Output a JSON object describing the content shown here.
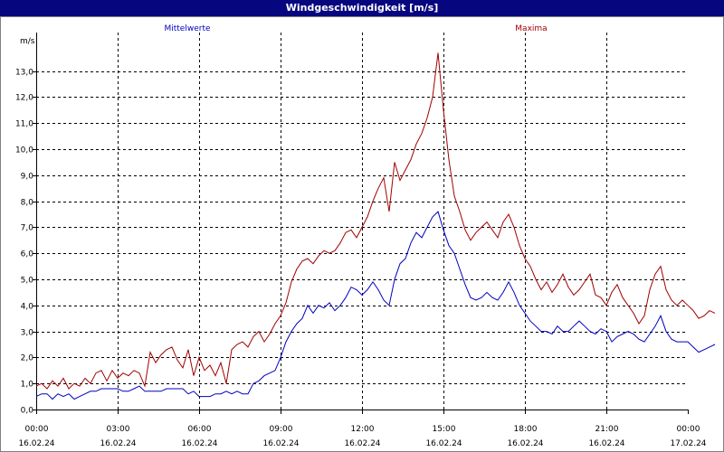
{
  "window": {
    "title": "Windgeschwindigkeit [m/s]"
  },
  "chart_data": {
    "type": "line",
    "title": "Windgeschwindigkeit [m/s]",
    "ylabel": "m/s",
    "xlabel": "",
    "ylim": [
      0,
      14
    ],
    "y_ticks": [
      "0,0",
      "1,0",
      "2,0",
      "3,0",
      "4,0",
      "5,0",
      "6,0",
      "7,0",
      "8,0",
      "9,0",
      "10,0",
      "11,0",
      "12,0",
      "13,0"
    ],
    "x_range_hours": [
      0,
      24
    ],
    "x_ticks": [
      {
        "hour": 0,
        "time": "00:00",
        "date": "16.02.24"
      },
      {
        "hour": 3,
        "time": "03:00",
        "date": "16.02.24"
      },
      {
        "hour": 6,
        "time": "06:00",
        "date": "16.02.24"
      },
      {
        "hour": 9,
        "time": "09:00",
        "date": "16.02.24"
      },
      {
        "hour": 12,
        "time": "12:00",
        "date": "16.02.24"
      },
      {
        "hour": 15,
        "time": "15:00",
        "date": "16.02.24"
      },
      {
        "hour": 18,
        "time": "18:00",
        "date": "16.02.24"
      },
      {
        "hour": 21,
        "time": "21:00",
        "date": "16.02.24"
      },
      {
        "hour": 24,
        "time": "00:00",
        "date": "17.02.24"
      }
    ],
    "grid": true,
    "series": [
      {
        "name": "Mittelwerte",
        "color": "#0000c0",
        "points": [
          [
            0,
            0.5
          ],
          [
            0.2,
            0.6
          ],
          [
            0.4,
            0.6
          ],
          [
            0.6,
            0.4
          ],
          [
            0.8,
            0.6
          ],
          [
            1,
            0.5
          ],
          [
            1.2,
            0.6
          ],
          [
            1.4,
            0.4
          ],
          [
            1.6,
            0.5
          ],
          [
            1.8,
            0.6
          ],
          [
            2,
            0.7
          ],
          [
            2.2,
            0.7
          ],
          [
            2.4,
            0.8
          ],
          [
            2.6,
            0.8
          ],
          [
            2.8,
            0.8
          ],
          [
            3,
            0.8
          ],
          [
            3.2,
            0.7
          ],
          [
            3.4,
            0.7
          ],
          [
            3.6,
            0.8
          ],
          [
            3.8,
            0.9
          ],
          [
            4,
            0.7
          ],
          [
            4.2,
            0.7
          ],
          [
            4.4,
            0.7
          ],
          [
            4.6,
            0.7
          ],
          [
            4.8,
            0.8
          ],
          [
            5,
            0.8
          ],
          [
            5.2,
            0.8
          ],
          [
            5.4,
            0.8
          ],
          [
            5.6,
            0.6
          ],
          [
            5.8,
            0.7
          ],
          [
            6,
            0.5
          ],
          [
            6.2,
            0.5
          ],
          [
            6.4,
            0.5
          ],
          [
            6.6,
            0.6
          ],
          [
            6.8,
            0.6
          ],
          [
            7,
            0.7
          ],
          [
            7.2,
            0.6
          ],
          [
            7.4,
            0.7
          ],
          [
            7.6,
            0.6
          ],
          [
            7.8,
            0.6
          ],
          [
            8,
            1.0
          ],
          [
            8.2,
            1.1
          ],
          [
            8.4,
            1.3
          ],
          [
            8.6,
            1.4
          ],
          [
            8.8,
            1.5
          ],
          [
            9,
            2.0
          ],
          [
            9.2,
            2.6
          ],
          [
            9.4,
            3.0
          ],
          [
            9.6,
            3.3
          ],
          [
            9.8,
            3.5
          ],
          [
            10,
            4.0
          ],
          [
            10.2,
            3.7
          ],
          [
            10.4,
            4.0
          ],
          [
            10.6,
            3.9
          ],
          [
            10.8,
            4.1
          ],
          [
            11,
            3.8
          ],
          [
            11.2,
            4.0
          ],
          [
            11.4,
            4.3
          ],
          [
            11.6,
            4.7
          ],
          [
            11.8,
            4.6
          ],
          [
            12,
            4.4
          ],
          [
            12.2,
            4.6
          ],
          [
            12.4,
            4.9
          ],
          [
            12.6,
            4.6
          ],
          [
            12.8,
            4.2
          ],
          [
            13,
            4.0
          ],
          [
            13.2,
            5.0
          ],
          [
            13.4,
            5.6
          ],
          [
            13.6,
            5.8
          ],
          [
            13.8,
            6.4
          ],
          [
            14,
            6.8
          ],
          [
            14.2,
            6.6
          ],
          [
            14.4,
            7.0
          ],
          [
            14.6,
            7.4
          ],
          [
            14.8,
            7.6
          ],
          [
            15,
            6.9
          ],
          [
            15.2,
            6.3
          ],
          [
            15.4,
            6.0
          ],
          [
            15.6,
            5.4
          ],
          [
            15.8,
            4.8
          ],
          [
            16,
            4.3
          ],
          [
            16.2,
            4.2
          ],
          [
            16.4,
            4.3
          ],
          [
            16.6,
            4.5
          ],
          [
            16.8,
            4.3
          ],
          [
            17,
            4.2
          ],
          [
            17.2,
            4.5
          ],
          [
            17.4,
            4.9
          ],
          [
            17.6,
            4.5
          ],
          [
            17.8,
            4.0
          ],
          [
            18,
            3.7
          ],
          [
            18.2,
            3.4
          ],
          [
            18.4,
            3.2
          ],
          [
            18.6,
            3.0
          ],
          [
            18.8,
            3.0
          ],
          [
            19,
            2.9
          ],
          [
            19.2,
            3.2
          ],
          [
            19.4,
            3.0
          ],
          [
            19.6,
            3.0
          ],
          [
            19.8,
            3.2
          ],
          [
            20,
            3.4
          ],
          [
            20.2,
            3.2
          ],
          [
            20.4,
            3.0
          ],
          [
            20.6,
            2.9
          ],
          [
            20.8,
            3.1
          ],
          [
            21,
            3.0
          ],
          [
            21.2,
            2.6
          ],
          [
            21.4,
            2.8
          ],
          [
            21.6,
            2.9
          ],
          [
            21.8,
            3.0
          ],
          [
            22,
            2.9
          ],
          [
            22.2,
            2.7
          ],
          [
            22.4,
            2.6
          ],
          [
            22.6,
            2.9
          ],
          [
            22.8,
            3.2
          ],
          [
            23,
            3.6
          ],
          [
            23.2,
            3.0
          ],
          [
            23.4,
            2.7
          ],
          [
            23.6,
            2.6
          ],
          [
            23.8,
            2.6
          ],
          [
            24,
            2.6
          ],
          [
            24.2,
            2.4
          ],
          [
            24.4,
            2.2
          ],
          [
            24.6,
            2.3
          ],
          [
            24.8,
            2.4
          ],
          [
            25,
            2.5
          ]
        ]
      },
      {
        "name": "Maxima",
        "color": "#a00000",
        "points": [
          [
            0,
            0.9
          ],
          [
            0.2,
            1.0
          ],
          [
            0.4,
            0.8
          ],
          [
            0.6,
            1.1
          ],
          [
            0.8,
            0.9
          ],
          [
            1,
            1.2
          ],
          [
            1.2,
            0.8
          ],
          [
            1.4,
            1.0
          ],
          [
            1.6,
            0.9
          ],
          [
            1.8,
            1.2
          ],
          [
            2,
            1.0
          ],
          [
            2.2,
            1.4
          ],
          [
            2.4,
            1.5
          ],
          [
            2.6,
            1.1
          ],
          [
            2.8,
            1.5
          ],
          [
            3,
            1.2
          ],
          [
            3.2,
            1.4
          ],
          [
            3.4,
            1.3
          ],
          [
            3.6,
            1.5
          ],
          [
            3.8,
            1.4
          ],
          [
            4,
            0.9
          ],
          [
            4.2,
            2.2
          ],
          [
            4.4,
            1.8
          ],
          [
            4.6,
            2.1
          ],
          [
            4.8,
            2.3
          ],
          [
            5,
            2.4
          ],
          [
            5.2,
            1.9
          ],
          [
            5.4,
            1.6
          ],
          [
            5.6,
            2.3
          ],
          [
            5.8,
            1.3
          ],
          [
            6,
            2.0
          ],
          [
            6.2,
            1.5
          ],
          [
            6.4,
            1.7
          ],
          [
            6.6,
            1.3
          ],
          [
            6.8,
            1.8
          ],
          [
            7,
            1.0
          ],
          [
            7.2,
            2.3
          ],
          [
            7.4,
            2.5
          ],
          [
            7.6,
            2.6
          ],
          [
            7.8,
            2.4
          ],
          [
            8,
            2.8
          ],
          [
            8.2,
            3.0
          ],
          [
            8.4,
            2.6
          ],
          [
            8.6,
            2.9
          ],
          [
            8.8,
            3.3
          ],
          [
            9,
            3.6
          ],
          [
            9.2,
            4.1
          ],
          [
            9.4,
            4.9
          ],
          [
            9.6,
            5.4
          ],
          [
            9.8,
            5.7
          ],
          [
            10,
            5.8
          ],
          [
            10.2,
            5.6
          ],
          [
            10.4,
            5.9
          ],
          [
            10.6,
            6.1
          ],
          [
            10.8,
            6.0
          ],
          [
            11,
            6.1
          ],
          [
            11.2,
            6.4
          ],
          [
            11.4,
            6.8
          ],
          [
            11.6,
            6.9
          ],
          [
            11.8,
            6.6
          ],
          [
            12,
            7.0
          ],
          [
            12.2,
            7.4
          ],
          [
            12.4,
            8.0
          ],
          [
            12.6,
            8.5
          ],
          [
            12.8,
            8.9
          ],
          [
            13,
            7.6
          ],
          [
            13.2,
            9.5
          ],
          [
            13.4,
            8.8
          ],
          [
            13.6,
            9.2
          ],
          [
            13.8,
            9.6
          ],
          [
            14,
            10.2
          ],
          [
            14.2,
            10.6
          ],
          [
            14.4,
            11.2
          ],
          [
            14.6,
            12.0
          ],
          [
            14.8,
            13.7
          ],
          [
            15,
            11.5
          ],
          [
            15.2,
            9.6
          ],
          [
            15.4,
            8.2
          ],
          [
            15.6,
            7.6
          ],
          [
            15.8,
            6.9
          ],
          [
            16,
            6.5
          ],
          [
            16.2,
            6.8
          ],
          [
            16.4,
            7.0
          ],
          [
            16.6,
            7.2
          ],
          [
            16.8,
            6.9
          ],
          [
            17,
            6.6
          ],
          [
            17.2,
            7.2
          ],
          [
            17.4,
            7.5
          ],
          [
            17.6,
            7.0
          ],
          [
            17.8,
            6.3
          ],
          [
            18,
            5.8
          ],
          [
            18.2,
            5.5
          ],
          [
            18.4,
            5.0
          ],
          [
            18.6,
            4.6
          ],
          [
            18.8,
            4.9
          ],
          [
            19,
            4.5
          ],
          [
            19.2,
            4.8
          ],
          [
            19.4,
            5.2
          ],
          [
            19.6,
            4.7
          ],
          [
            19.8,
            4.4
          ],
          [
            20,
            4.6
          ],
          [
            20.2,
            4.9
          ],
          [
            20.4,
            5.2
          ],
          [
            20.6,
            4.4
          ],
          [
            20.8,
            4.3
          ],
          [
            21,
            4.0
          ],
          [
            21.2,
            4.5
          ],
          [
            21.4,
            4.8
          ],
          [
            21.6,
            4.3
          ],
          [
            21.8,
            4.0
          ],
          [
            22,
            3.7
          ],
          [
            22.2,
            3.3
          ],
          [
            22.4,
            3.6
          ],
          [
            22.6,
            4.6
          ],
          [
            22.8,
            5.2
          ],
          [
            23,
            5.5
          ],
          [
            23.2,
            4.6
          ],
          [
            23.4,
            4.2
          ],
          [
            23.6,
            4.0
          ],
          [
            23.8,
            4.2
          ],
          [
            24,
            4.0
          ],
          [
            24.2,
            3.8
          ],
          [
            24.4,
            3.5
          ],
          [
            24.6,
            3.6
          ],
          [
            24.8,
            3.8
          ],
          [
            25,
            3.7
          ]
        ]
      }
    ]
  }
}
